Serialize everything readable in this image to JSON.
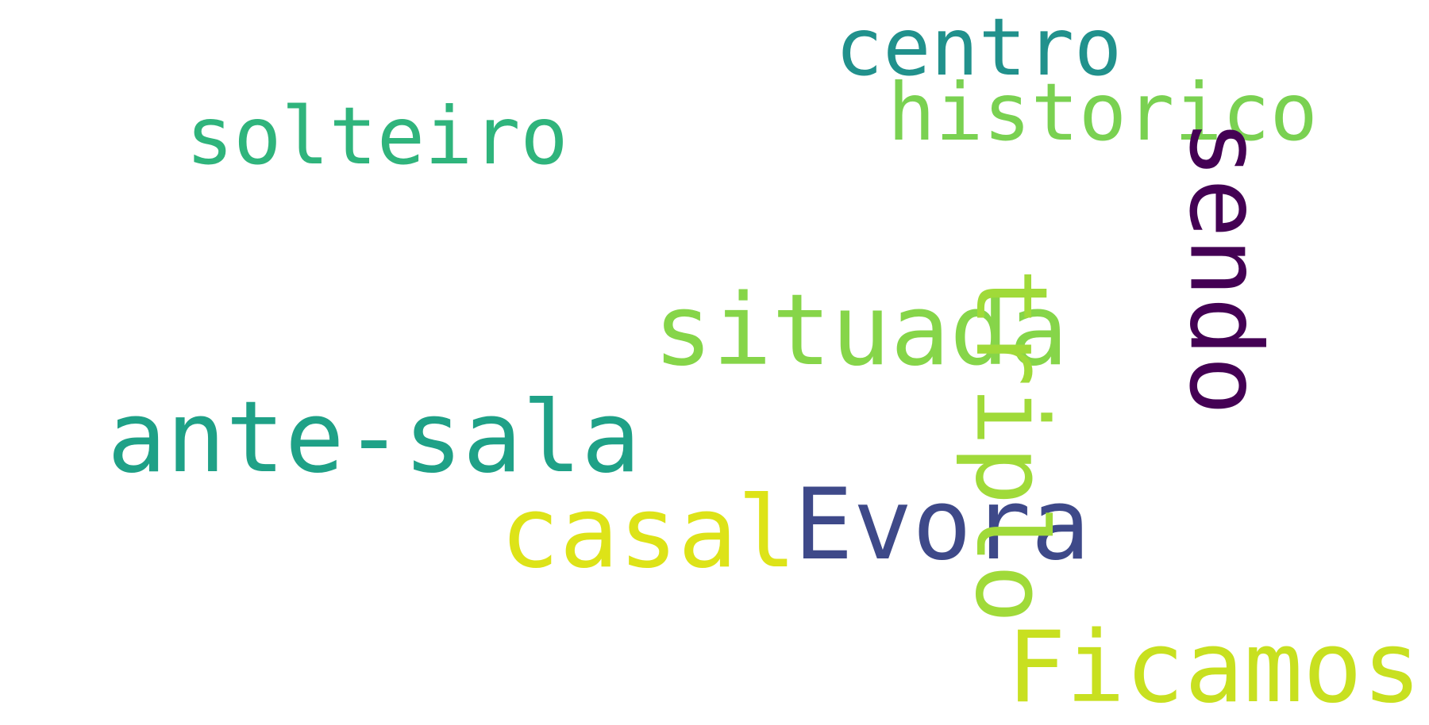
{
  "words": [
    {
      "text": "centro",
      "color": "#21918c"
    },
    {
      "text": "historico",
      "color": "#7ad151"
    },
    {
      "text": "solteiro",
      "color": "#2fb47c"
    },
    {
      "text": "situada",
      "color": "#86d549"
    },
    {
      "text": "ante-sala",
      "color": "#1fa187"
    },
    {
      "text": "casal",
      "color": "#dde318"
    },
    {
      "text": "Evora",
      "color": "#3e4989"
    },
    {
      "text": "triplo",
      "color": "#a0da39"
    },
    {
      "text": "sendo",
      "color": "#440154"
    },
    {
      "text": "Ficamos",
      "color": "#c8e020"
    }
  ]
}
